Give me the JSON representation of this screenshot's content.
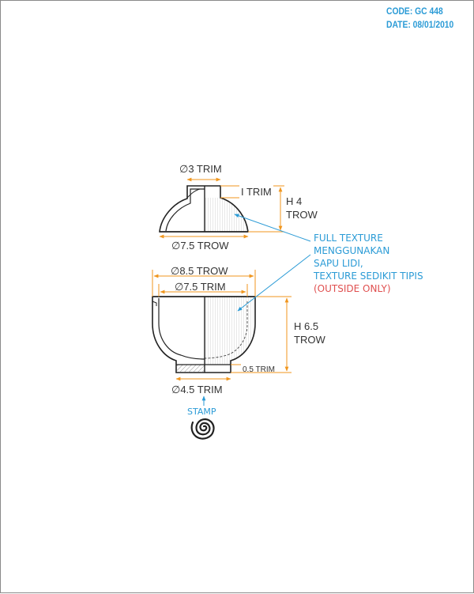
{
  "header": {
    "code": "CODE: GC 448",
    "date": "DATE: 08/01/2010"
  },
  "lid": {
    "top_diameter": "∅3 TRIM",
    "knob_height": "I TRIM",
    "height_line1": "H 4",
    "height_line2": "TROW",
    "bottom_diameter": "∅7.5 TROW"
  },
  "bowl": {
    "outer_diameter": "∅8.5 TROW",
    "rim_diameter": "∅7.5 TRIM",
    "height_line1": "H 6.5",
    "height_line2": "TROW",
    "foot_height": "0.5 TRIM",
    "foot_diameter": "∅4.5 TRIM"
  },
  "note": {
    "lines": [
      "FULL TEXTURE",
      "MENGGUNAKAN",
      "SAPU LIDI,",
      "TEXTURE SEDIKIT TIPIS"
    ],
    "red_line": "(OUTSIDE ONLY)"
  },
  "stamp": {
    "label": "STAMP",
    "icon": "spiral-stamp-icon"
  },
  "colors": {
    "dimension": "#f0961e",
    "note": "#2b9bd6",
    "note_red": "#e05050",
    "outline": "#222222"
  }
}
